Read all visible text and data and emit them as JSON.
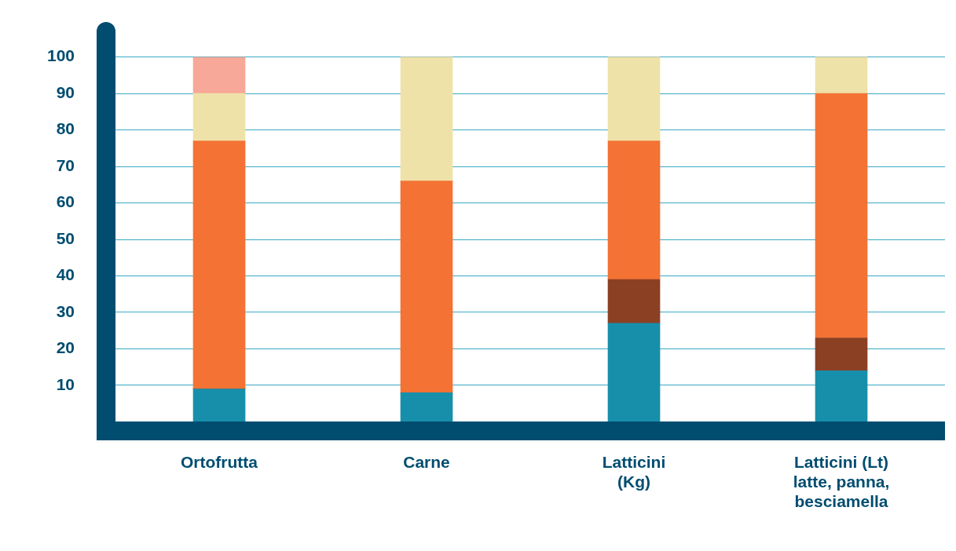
{
  "chart_data": {
    "type": "bar",
    "stacked": true,
    "categories": [
      "Ortofrutta",
      "Carne",
      "Latticini\n(Kg)",
      "Latticini (Lt)\nlatte, panna,\nbesciamella"
    ],
    "series": [
      {
        "color": "#178fab",
        "values": [
          9,
          8,
          27,
          14
        ]
      },
      {
        "color": "#8b4024",
        "values": [
          0,
          0,
          12,
          9
        ]
      },
      {
        "color": "#f37234",
        "values": [
          68,
          58,
          38,
          67
        ]
      },
      {
        "color": "#efe2a8",
        "values": [
          13,
          34,
          23,
          10
        ]
      },
      {
        "color": "#f7a898",
        "values": [
          10,
          0,
          0,
          0
        ]
      }
    ],
    "ylim": [
      0,
      100
    ],
    "yticks": [
      10,
      20,
      30,
      40,
      50,
      60,
      70,
      80,
      90,
      100
    ],
    "grid": "y",
    "legend": false
  }
}
